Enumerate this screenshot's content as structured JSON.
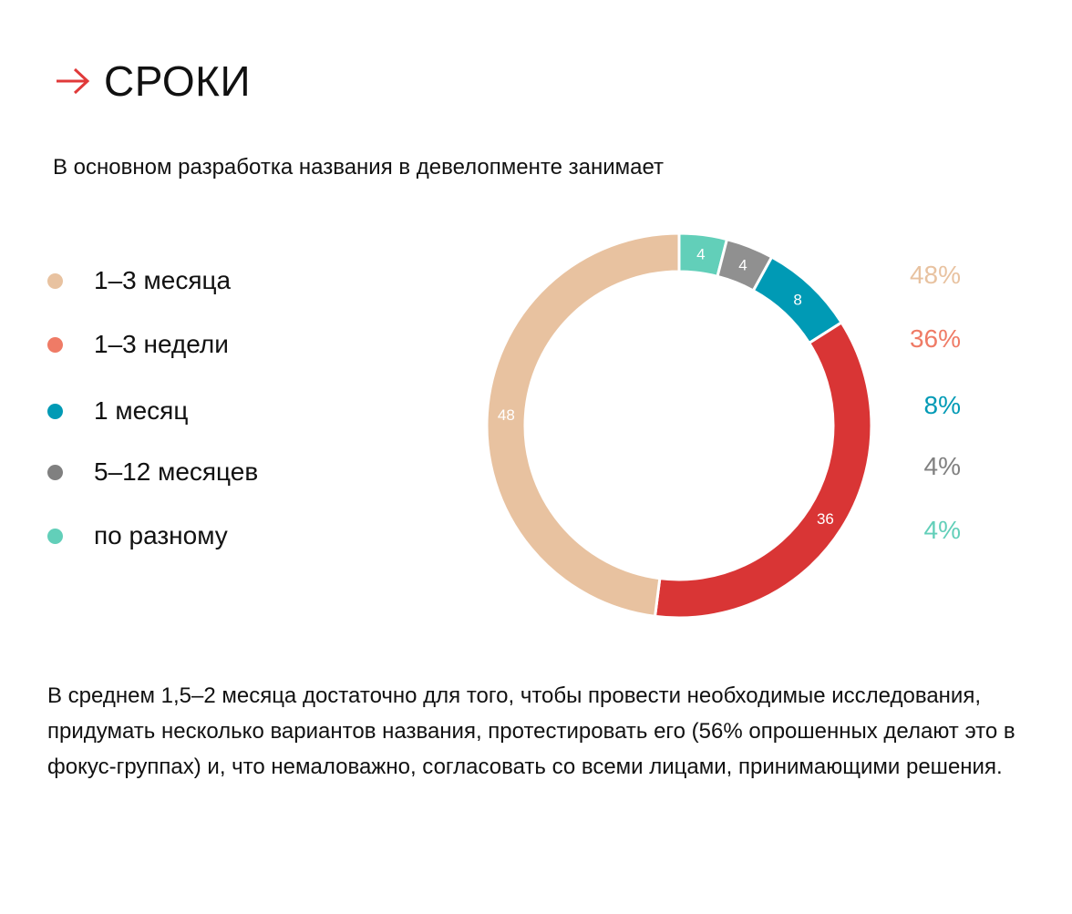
{
  "header": {
    "title": "СРОКИ",
    "arrow_color": "#e03a3a"
  },
  "subtitle": "В основном разработка названия в девелопменте занимает",
  "chart_data": {
    "type": "pie",
    "variant": "donut",
    "legend_placement": "left",
    "categories": [
      "1–3 месяца",
      "1–3 недели",
      "1 месяц",
      "5–12 месяцев",
      "по разному"
    ],
    "values": [
      48,
      36,
      8,
      4,
      4
    ],
    "value_labels": [
      "48",
      "36",
      "8",
      "4",
      "4"
    ],
    "percent_labels": [
      "48%",
      "36%",
      "8%",
      "4%",
      "4%"
    ],
    "colors": [
      "#e8c2a0",
      "#d93535",
      "#009ab5",
      "#909090",
      "#62cfb9"
    ],
    "legend_colors": [
      "#e8c2a0",
      "#ef7b66",
      "#009ab5",
      "#808080",
      "#62cfb9"
    ],
    "percent_colors": [
      "#e8c2a0",
      "#ef7b66",
      "#009ab5",
      "#808080",
      "#62cfb9"
    ]
  },
  "footer": "В среднем 1,5–2 месяца достаточно для того, чтобы провести необходимые исследования, придумать несколько вариантов названия, протестировать его (56% опрошенных делают это в фокус-группах) и, что немаловажно, согласовать со всеми лицами, принимающими решения."
}
